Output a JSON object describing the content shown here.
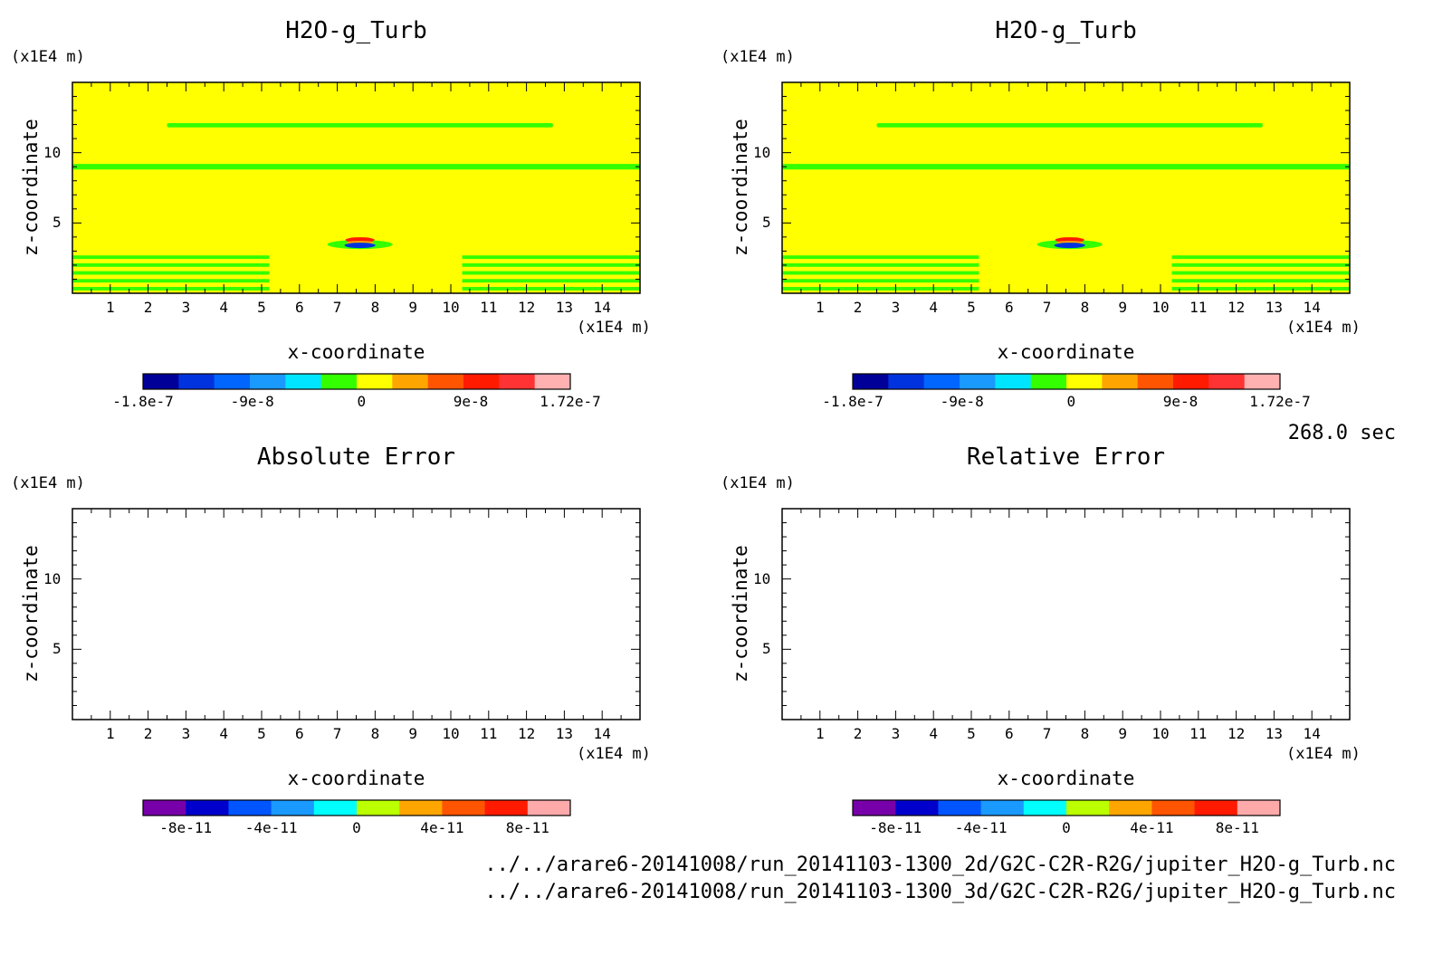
{
  "chart_data": [
    {
      "type": "heatmap",
      "title": "H2O-g_Turb",
      "xlabel": "x-coordinate",
      "ylabel": "z-coordinate",
      "x_unit": "(x1E4 m)",
      "y_unit": "(x1E4 m)",
      "xlim": [
        0,
        15
      ],
      "ylim": [
        0,
        15
      ],
      "xticks": [
        "1",
        "2",
        "3",
        "4",
        "5",
        "6",
        "7",
        "8",
        "9",
        "10",
        "11",
        "12",
        "13",
        "14"
      ],
      "yticks": [
        "5",
        "10"
      ],
      "colorbar": {
        "min": -1.8e-07,
        "max": 1.72e-07,
        "labels": [
          "-1.8e-7",
          "-9e-8",
          "0",
          "9e-8",
          "1.72e-7"
        ],
        "colors": [
          "#000099",
          "#0033dd",
          "#0066ff",
          "#1a99ff",
          "#00e5ff",
          "#33ff00",
          "#ffff00",
          "#ffa500",
          "#ff5500",
          "#ff1a00",
          "#ff3333",
          "#ffb0b0"
        ]
      },
      "background_color": "#ffff00",
      "features": [
        {
          "kind": "band",
          "color": "#33ff00",
          "x": [
            2.5,
            12.7
          ],
          "z": [
            11.8,
            12.1
          ]
        },
        {
          "kind": "band",
          "color": "#33ff00",
          "x": [
            0,
            15
          ],
          "z": [
            8.8,
            9.2
          ]
        },
        {
          "kind": "stripes",
          "color": "#33ff00",
          "x": [
            0,
            5.2
          ],
          "z": [
            0.2,
            3.0
          ],
          "count": 5
        },
        {
          "kind": "stripes",
          "color": "#33ff00",
          "x": [
            10.3,
            15
          ],
          "z": [
            0.2,
            3.0
          ],
          "count": 5
        },
        {
          "kind": "blob",
          "x_center": 7.6,
          "z_center": 3.6,
          "colors": [
            "#ff1a00",
            "#ffa500",
            "#0033dd",
            "#33ff00"
          ]
        }
      ]
    },
    {
      "type": "heatmap",
      "title": "H2O-g_Turb",
      "xlabel": "x-coordinate",
      "ylabel": "z-coordinate",
      "x_unit": "(x1E4 m)",
      "y_unit": "(x1E4 m)",
      "xlim": [
        0,
        15
      ],
      "ylim": [
        0,
        15
      ],
      "xticks": [
        "1",
        "2",
        "3",
        "4",
        "5",
        "6",
        "7",
        "8",
        "9",
        "10",
        "11",
        "12",
        "13",
        "14"
      ],
      "yticks": [
        "5",
        "10"
      ],
      "colorbar": {
        "min": -1.8e-07,
        "max": 1.72e-07,
        "labels": [
          "-1.8e-7",
          "-9e-8",
          "0",
          "9e-8",
          "1.72e-7"
        ],
        "colors": [
          "#000099",
          "#0033dd",
          "#0066ff",
          "#1a99ff",
          "#00e5ff",
          "#33ff00",
          "#ffff00",
          "#ffa500",
          "#ff5500",
          "#ff1a00",
          "#ff3333",
          "#ffb0b0"
        ]
      },
      "background_color": "#ffff00",
      "features": [
        {
          "kind": "band",
          "color": "#33ff00",
          "x": [
            2.5,
            12.7
          ],
          "z": [
            11.8,
            12.1
          ]
        },
        {
          "kind": "band",
          "color": "#33ff00",
          "x": [
            0,
            15
          ],
          "z": [
            8.8,
            9.2
          ]
        },
        {
          "kind": "stripes",
          "color": "#33ff00",
          "x": [
            0,
            5.2
          ],
          "z": [
            0.2,
            3.0
          ],
          "count": 5
        },
        {
          "kind": "stripes",
          "color": "#33ff00",
          "x": [
            10.3,
            15
          ],
          "z": [
            0.2,
            3.0
          ],
          "count": 5
        },
        {
          "kind": "blob",
          "x_center": 7.6,
          "z_center": 3.6,
          "colors": [
            "#ff1a00",
            "#ffa500",
            "#0033dd",
            "#33ff00"
          ]
        }
      ]
    },
    {
      "type": "heatmap",
      "title": "Absolute Error",
      "xlabel": "x-coordinate",
      "ylabel": "z-coordinate",
      "x_unit": "(x1E4 m)",
      "y_unit": "(x1E4 m)",
      "xlim": [
        0,
        15
      ],
      "ylim": [
        0,
        15
      ],
      "xticks": [
        "1",
        "2",
        "3",
        "4",
        "5",
        "6",
        "7",
        "8",
        "9",
        "10",
        "11",
        "12",
        "13",
        "14"
      ],
      "yticks": [
        "5",
        "10"
      ],
      "colorbar": {
        "min": -1e-10,
        "max": 1e-10,
        "labels": [
          "-8e-11",
          "-4e-11",
          "0",
          "4e-11",
          "8e-11"
        ],
        "colors": [
          "#7700aa",
          "#0000cc",
          "#0055ff",
          "#1a99ff",
          "#00ffff",
          "#bbff00",
          "#ffa500",
          "#ff5500",
          "#ff1a00",
          "#ffaaaa"
        ]
      },
      "background_color": "#ffffff",
      "features": []
    },
    {
      "type": "heatmap",
      "title": "Relative Error",
      "xlabel": "x-coordinate",
      "ylabel": "z-coordinate",
      "x_unit": "(x1E4 m)",
      "y_unit": "(x1E4 m)",
      "xlim": [
        0,
        15
      ],
      "ylim": [
        0,
        15
      ],
      "xticks": [
        "1",
        "2",
        "3",
        "4",
        "5",
        "6",
        "7",
        "8",
        "9",
        "10",
        "11",
        "12",
        "13",
        "14"
      ],
      "yticks": [
        "5",
        "10"
      ],
      "colorbar": {
        "min": -1e-10,
        "max": 1e-10,
        "labels": [
          "-8e-11",
          "-4e-11",
          "0",
          "4e-11",
          "8e-11"
        ],
        "colors": [
          "#7700aa",
          "#0000cc",
          "#0055ff",
          "#1a99ff",
          "#00ffff",
          "#bbff00",
          "#ffa500",
          "#ff5500",
          "#ff1a00",
          "#ffaaaa"
        ]
      },
      "background_color": "#ffffff",
      "features": []
    }
  ],
  "time_label": "268.0 sec",
  "files": [
    "../../arare6-20141008/run_20141103-1300_2d/G2C-C2R-R2G/jupiter_H2O-g_Turb.nc",
    "../../arare6-20141008/run_20141103-1300_3d/G2C-C2R-R2G/jupiter_H2O-g_Turb.nc"
  ]
}
